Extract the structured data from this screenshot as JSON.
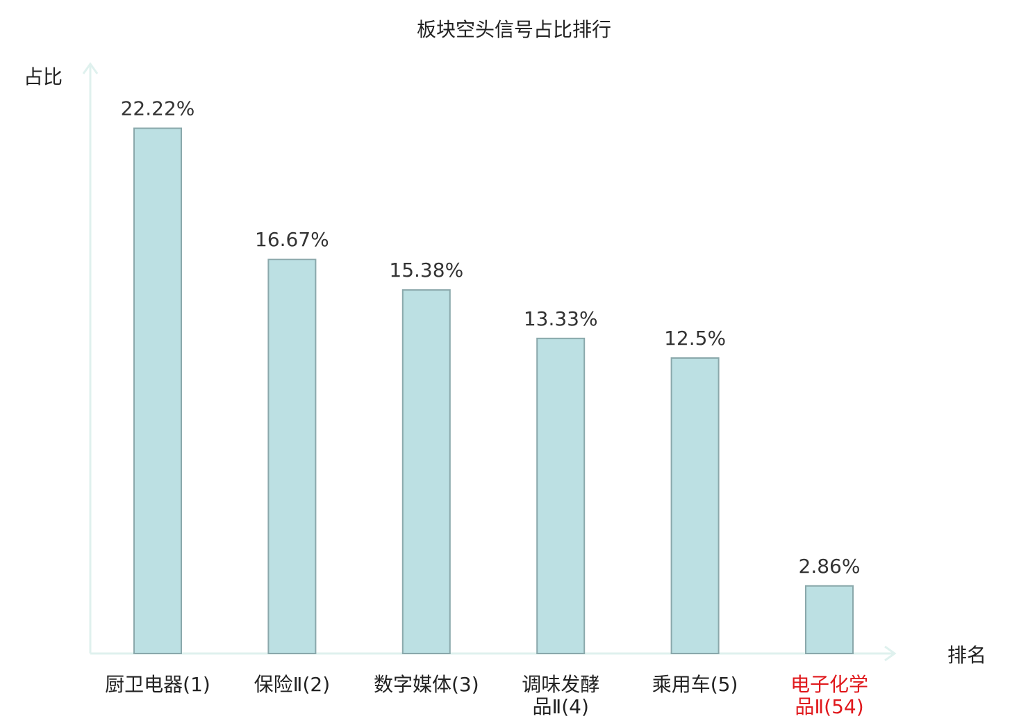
{
  "chart_data": {
    "type": "bar",
    "title": "板块空头信号占比排行",
    "ylabel": "占比",
    "xlabel": "排名",
    "ylim": [
      0,
      25
    ],
    "grid": false,
    "legend": "none",
    "categories": [
      [
        "厨卫电器(1)"
      ],
      [
        "保险Ⅱ(2)"
      ],
      [
        "数字媒体(3)"
      ],
      [
        "调味发酵",
        "品Ⅱ(4)"
      ],
      [
        "乘用车(5)"
      ],
      [
        "电子化学",
        "品Ⅱ(54)"
      ]
    ],
    "values": [
      22.22,
      16.67,
      15.38,
      13.33,
      12.5,
      2.86
    ],
    "value_labels": [
      "22.22%",
      "16.67%",
      "15.38%",
      "13.33%",
      "12.5%",
      "2.86%"
    ],
    "highlight_index": 5,
    "colors": {
      "bar_fill": "#bce0e3",
      "bar_stroke": "#8aa8ab",
      "axis": "#dff1ee",
      "text": "#222222",
      "highlight": "#e0191d"
    }
  }
}
